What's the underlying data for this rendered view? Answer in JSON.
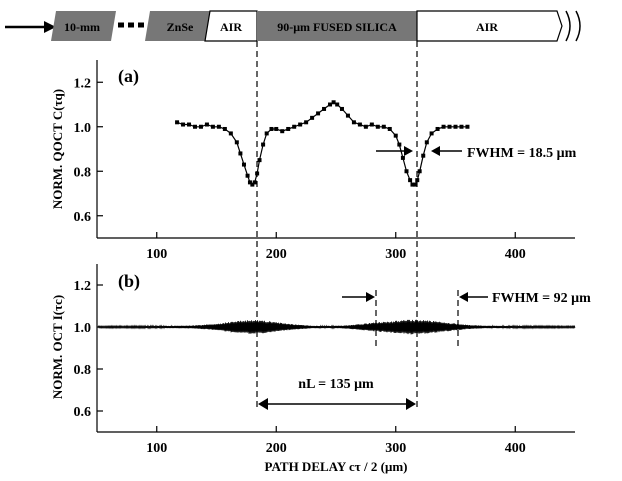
{
  "figure": {
    "schematic": {
      "segments": [
        {
          "label": "10-mm",
          "color": "#777777"
        },
        {
          "label": "",
          "color": "#ffffff",
          "dashed": true
        },
        {
          "label": "ZnSe",
          "color": "#777777"
        },
        {
          "label": "AIR",
          "color": "#ffffff"
        },
        {
          "label": "90-μm FUSED SILICA",
          "color": "#777777"
        },
        {
          "label": "AIR",
          "color": "#ffffff"
        }
      ]
    },
    "xlabel": "PATH DELAY cτ / 2 (μm)"
  },
  "chart_data": [
    {
      "type": "scatter",
      "panel_label": "(a)",
      "ylabel": "NORM. QOCT C(τq)",
      "xlim": [
        50,
        450
      ],
      "ylim": [
        0.5,
        1.3
      ],
      "xticks": [
        100,
        200,
        300,
        400
      ],
      "yticks": [
        0.6,
        0.8,
        1.0,
        1.2
      ],
      "series": [
        {
          "x": [
            117,
            122,
            127,
            132,
            137,
            142,
            147,
            152,
            157,
            162,
            167,
            170,
            173,
            176,
            178,
            180,
            182,
            184,
            186,
            189,
            192,
            196,
            200,
            205,
            210,
            215,
            220,
            225,
            230,
            235,
            240,
            245,
            248,
            251,
            255,
            260,
            265,
            270,
            275,
            280,
            285,
            290,
            295,
            300,
            303,
            306,
            309,
            312,
            314,
            316,
            318,
            320,
            323,
            326,
            330,
            335,
            340,
            345,
            350,
            355,
            360
          ],
          "y": [
            1.02,
            1.01,
            1.01,
            1.0,
            1.0,
            1.01,
            1.0,
            1.0,
            0.99,
            0.97,
            0.93,
            0.88,
            0.83,
            0.78,
            0.75,
            0.74,
            0.75,
            0.79,
            0.85,
            0.92,
            0.97,
            0.99,
            0.99,
            0.98,
            0.99,
            1.0,
            1.01,
            1.02,
            1.04,
            1.06,
            1.08,
            1.1,
            1.11,
            1.1,
            1.08,
            1.05,
            1.02,
            1.01,
            1.0,
            1.01,
            1.0,
            1.0,
            0.99,
            0.96,
            0.92,
            0.86,
            0.8,
            0.76,
            0.74,
            0.74,
            0.76,
            0.8,
            0.87,
            0.93,
            0.97,
            0.99,
            1.0,
            1.0,
            1.0,
            1.0,
            1.0
          ]
        }
      ],
      "annotations": [
        {
          "text": "FWHM = 18.5 μm"
        }
      ]
    },
    {
      "type": "line",
      "panel_label": "(b)",
      "ylabel": "NORM. OCT I(τc)",
      "xlim": [
        50,
        450
      ],
      "ylim": [
        0.5,
        1.3
      ],
      "xticks": [
        100,
        200,
        300,
        400
      ],
      "yticks": [
        0.6,
        0.8,
        1.0,
        1.2
      ],
      "series": [
        {
          "baseline": 1.0,
          "envelope_x": [
            50,
            100,
            130,
            150,
            165,
            180,
            195,
            210,
            230,
            245,
            260,
            280,
            300,
            315,
            330,
            345,
            360,
            375,
            400,
            450
          ],
          "envelope_amp": [
            0.004,
            0.005,
            0.007,
            0.015,
            0.028,
            0.035,
            0.028,
            0.015,
            0.006,
            0.005,
            0.008,
            0.02,
            0.03,
            0.036,
            0.03,
            0.02,
            0.01,
            0.006,
            0.005,
            0.004
          ]
        }
      ],
      "annotations": [
        {
          "text": "FWHM = 92 μm"
        },
        {
          "text": "nL = 135 μm"
        }
      ]
    }
  ]
}
